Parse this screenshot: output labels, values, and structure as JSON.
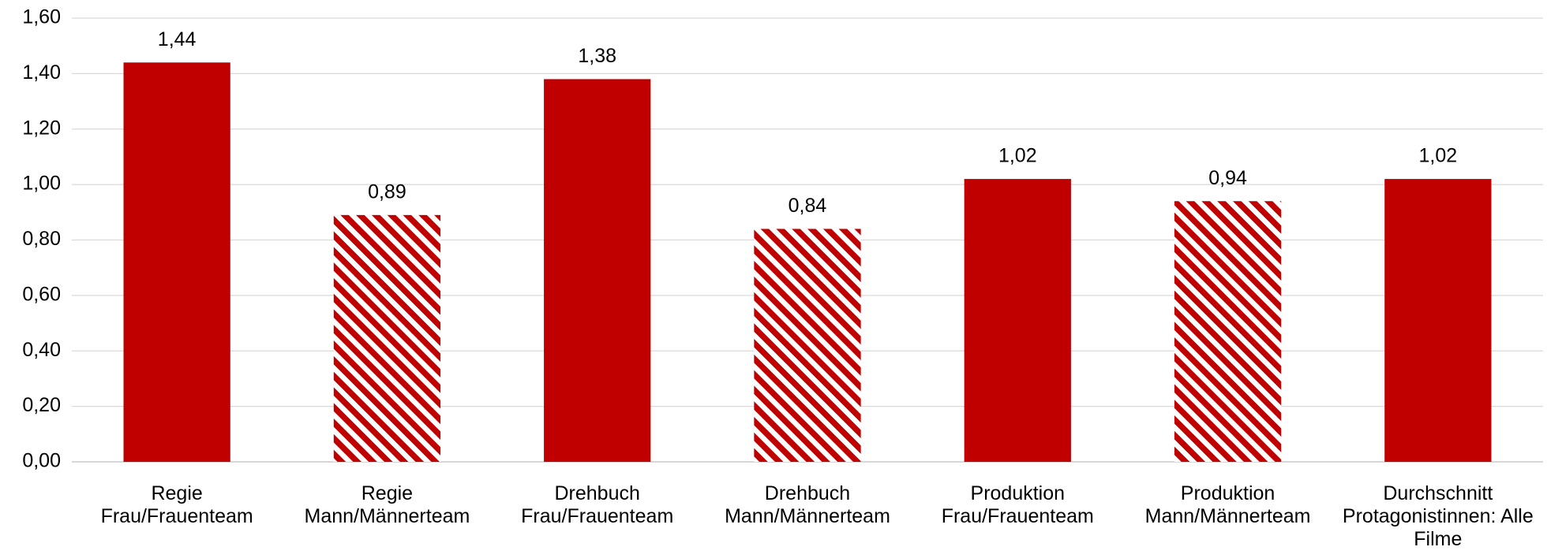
{
  "chart_data": {
    "type": "bar",
    "categories": [
      "Regie\nFrau/Frauenteam",
      "Regie\nMann/Männerteam",
      "Drehbuch\nFrau/Frauenteam",
      "Drehbuch\nMann/Männerteam",
      "Produktion\nFrau/Frauenteam",
      "Produktion\nMann/Männerteam",
      "Durchschnitt\nProtagonistinnen: Alle\nFilme"
    ],
    "values": [
      1.44,
      0.89,
      1.38,
      0.84,
      1.02,
      0.94,
      1.02
    ],
    "value_labels": [
      "1,44",
      "0,89",
      "1,38",
      "0,84",
      "1,02",
      "0,94",
      "1,02"
    ],
    "hatched": [
      false,
      true,
      false,
      true,
      false,
      true,
      false
    ],
    "color": "#c00000",
    "ylim": [
      0,
      1.6
    ],
    "yticks": [
      {
        "value": 0,
        "label": "0,00"
      },
      {
        "value": 0.2,
        "label": "0,20"
      },
      {
        "value": 0.4,
        "label": "0,40"
      },
      {
        "value": 0.6,
        "label": "0,60"
      },
      {
        "value": 0.8,
        "label": "0,80"
      },
      {
        "value": 1.0,
        "label": "1,00"
      },
      {
        "value": 1.2,
        "label": "1,20"
      },
      {
        "value": 1.4,
        "label": "1,40"
      },
      {
        "value": 1.6,
        "label": "1,60"
      }
    ],
    "grid": true
  }
}
